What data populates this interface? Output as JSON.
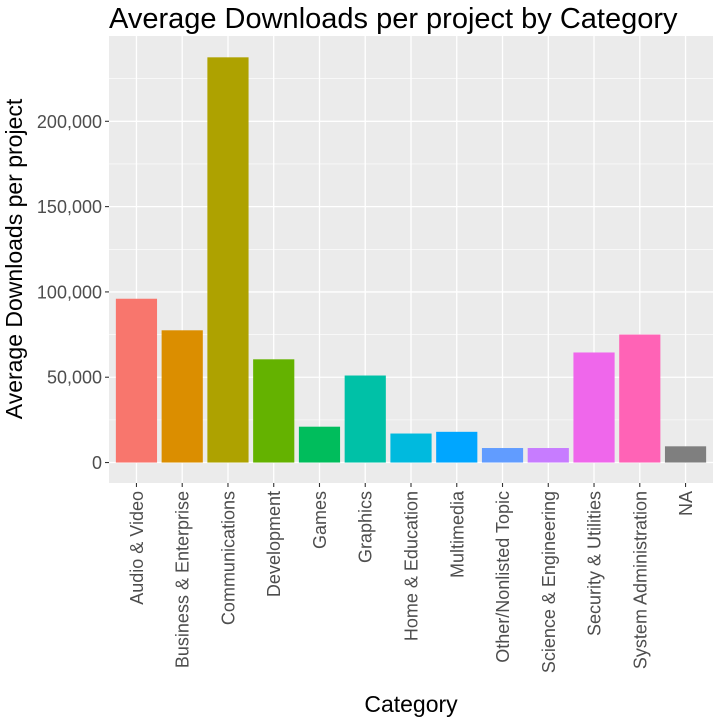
{
  "chart_data": {
    "type": "bar",
    "title": "Average Downloads per project by Category",
    "xlabel": "Category",
    "ylabel": "Average Downloads per project",
    "categories": [
      "Audio & Video",
      "Business & Enterprise",
      "Communications",
      "Development",
      "Games",
      "Graphics",
      "Home & Education",
      "Multimedia",
      "Other/Nonlisted Topic",
      "Science & Engineering",
      "Security & Utilities",
      "System Administration",
      "NA"
    ],
    "values": [
      96000,
      77500,
      237500,
      60500,
      21000,
      51000,
      17000,
      18000,
      8500,
      8500,
      64500,
      75000,
      9500
    ],
    "colors": [
      "#F8766D",
      "#DB8E00",
      "#AEA200",
      "#64B200",
      "#00BD5C",
      "#00C1A7",
      "#00BADE",
      "#00A6FF",
      "#619CFF",
      "#C77CFF",
      "#EF67EB",
      "#FF63B6",
      "#7F7F7F"
    ],
    "yticks": [
      0,
      50000,
      100000,
      150000,
      200000
    ],
    "ytick_labels": [
      "0",
      "50,000",
      "100,000",
      "150,000",
      "200,000"
    ],
    "ylim": [
      -12000,
      250000
    ],
    "grid": true,
    "legend": "none",
    "panel_background": "#EBEBEB",
    "gridline_color": "#FFFFFF"
  }
}
